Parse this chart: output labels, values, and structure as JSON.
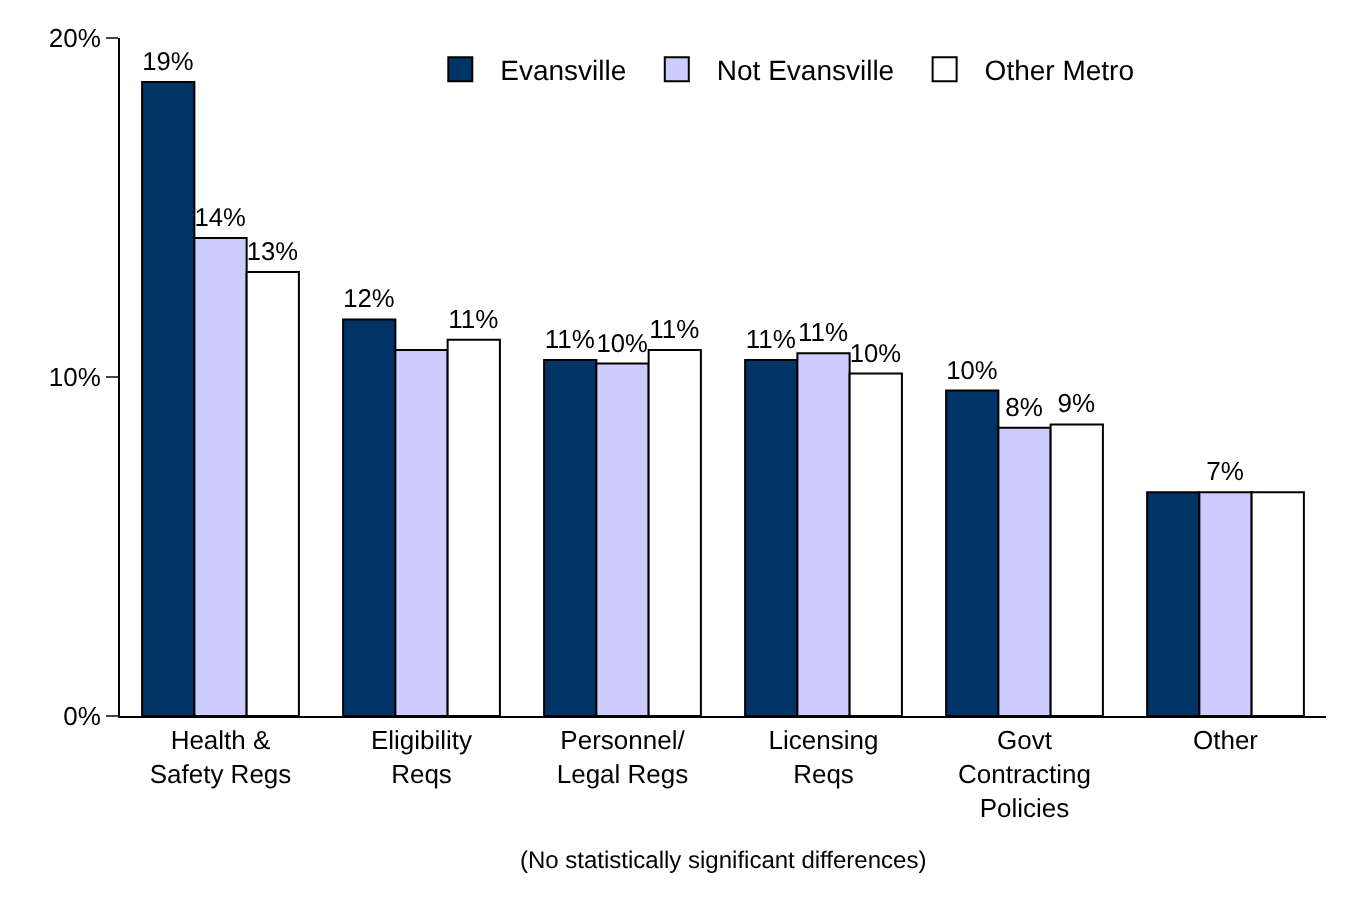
{
  "chart_data": {
    "type": "bar",
    "categories": [
      "Health &\nSafety Regs",
      "Eligibility\nReqs",
      "Personnel/\nLegal Regs",
      "Licensing\nReqs",
      "Govt\nContracting\nPolicies",
      "Other"
    ],
    "series": [
      {
        "name": "Evansville",
        "color": "#003366",
        "values": [
          18.7,
          11.7,
          10.5,
          10.5,
          9.6,
          6.6
        ],
        "value_labels": [
          "19%",
          "12%",
          "11%",
          "11%",
          "10%",
          null
        ]
      },
      {
        "name": "Not Evansville",
        "color": "#ccccff",
        "values": [
          14.1,
          10.8,
          10.4,
          10.7,
          8.5,
          6.6
        ],
        "value_labels": [
          "14%",
          null,
          "10%",
          "11%",
          "8%",
          "7%"
        ]
      },
      {
        "name": "Other Metro",
        "color": "#ffffff",
        "values": [
          13.1,
          11.1,
          10.8,
          10.1,
          8.6,
          6.6
        ],
        "value_labels": [
          "13%",
          "11%",
          "11%",
          "10%",
          "9%",
          null
        ]
      }
    ],
    "ylim": [
      0,
      20
    ],
    "yticks": [
      {
        "value": 0,
        "label": "0%"
      },
      {
        "value": 10,
        "label": "10%"
      },
      {
        "value": 20,
        "label": "20%"
      }
    ],
    "legend": "top",
    "annotations": [
      "(No statistically significant differences)"
    ]
  }
}
